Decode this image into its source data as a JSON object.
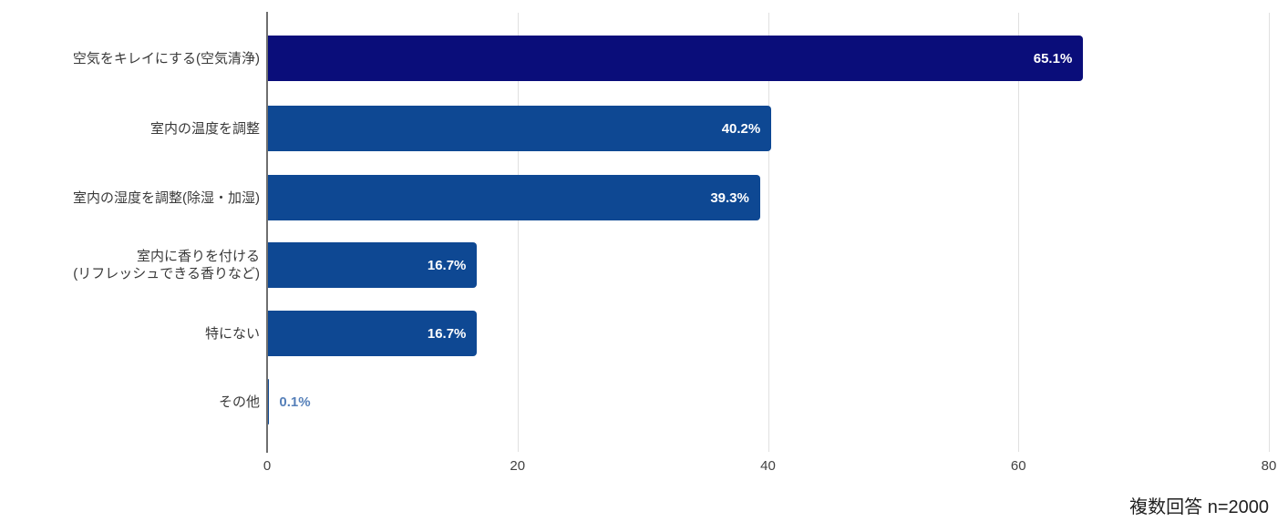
{
  "chart_data": {
    "type": "bar",
    "orientation": "horizontal",
    "title": "",
    "xlabel": "",
    "ylabel": "",
    "categories": [
      "空気をキレイにする(空気清浄)",
      "室内の温度を調整",
      "室内の湿度を調整(除湿・加湿)",
      "室内に香りを付ける\n(リフレッシュできる香りなど)",
      "特にない",
      "その他"
    ],
    "values": [
      65.1,
      40.2,
      39.3,
      16.7,
      16.7,
      0.1
    ],
    "data_labels": [
      "65.1%",
      "40.2%",
      "39.3%",
      "16.7%",
      "16.7%",
      "0.1%"
    ],
    "label_positions": [
      "inside",
      "inside",
      "inside",
      "inside",
      "inside",
      "outside"
    ],
    "bar_colors": [
      "#0a0d7a",
      "#0e4893",
      "#0e4893",
      "#0e4893",
      "#0e4893",
      "#0e4893"
    ],
    "xlim": [
      0,
      80
    ],
    "x_ticks": [
      "0",
      "20",
      "40",
      "60",
      "80"
    ],
    "grid": true,
    "legend": "none",
    "annotation": "複数回答 n=2000",
    "colors": {
      "value_label_inside": "#ffffff",
      "value_label_outside": "#5680b9",
      "gridline": "#e0e0e0",
      "axis_line": "#6e6e6e",
      "category_label": "#3a3a3a",
      "tick_label": "#424242",
      "note": "#1f1f1f"
    }
  }
}
